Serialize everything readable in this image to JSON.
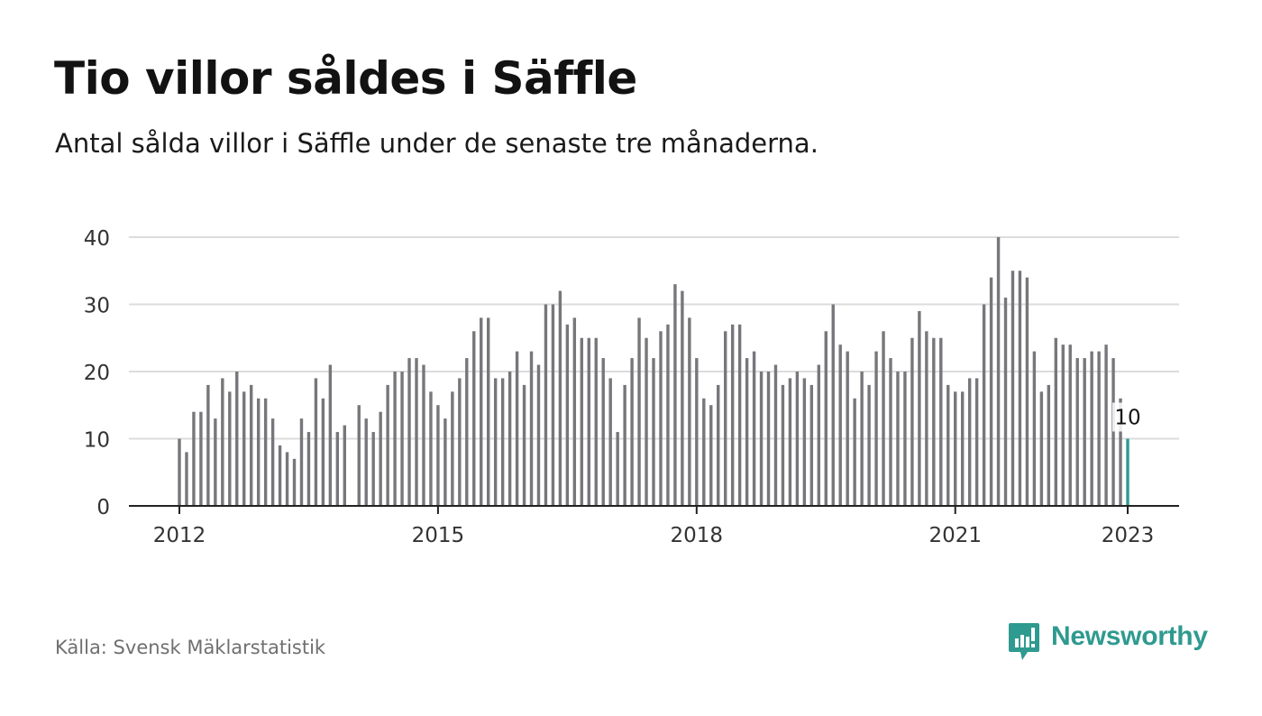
{
  "header": {
    "title": "Tio villor såldes i Säffle",
    "subtitle": "Antal sålda villor i Säffle under de senaste tre månaderna."
  },
  "footer": {
    "source": "Källa: Svensk Mäklarstatistik",
    "brand": "Newsworthy"
  },
  "colors": {
    "bar": "#77777b",
    "highlight": "#2f9a8f",
    "grid": "#dcdcdc",
    "axis": "#222222",
    "brand": "#2f9a8f"
  },
  "chart_data": {
    "type": "bar",
    "x_start": "2012-01",
    "x_end": "2023-01",
    "frequency": "monthly",
    "x_tick_labels": [
      "2012",
      "2015",
      "2018",
      "2021",
      "2023"
    ],
    "y_ticks": [
      0,
      10,
      20,
      30,
      40
    ],
    "ylim": [
      0,
      40
    ],
    "grid": true,
    "values": [
      10,
      8,
      14,
      14,
      18,
      13,
      19,
      17,
      20,
      17,
      18,
      16,
      16,
      13,
      9,
      8,
      7,
      13,
      11,
      19,
      16,
      21,
      11,
      12,
      0,
      15,
      13,
      11,
      14,
      18,
      20,
      20,
      22,
      22,
      21,
      17,
      15,
      13,
      17,
      19,
      22,
      26,
      28,
      28,
      19,
      19,
      20,
      23,
      18,
      23,
      21,
      30,
      30,
      32,
      27,
      28,
      25,
      25,
      25,
      22,
      19,
      11,
      18,
      22,
      28,
      25,
      22,
      26,
      27,
      33,
      32,
      28,
      22,
      16,
      15,
      18,
      26,
      27,
      27,
      22,
      23,
      20,
      20,
      21,
      18,
      19,
      20,
      19,
      18,
      21,
      26,
      30,
      24,
      23,
      16,
      20,
      18,
      23,
      26,
      22,
      20,
      20,
      25,
      29,
      26,
      25,
      25,
      18,
      17,
      17,
      19,
      19,
      30,
      34,
      40,
      31,
      35,
      35,
      34,
      23,
      17,
      18,
      25,
      24,
      24,
      22,
      22,
      23,
      23,
      24,
      22,
      16,
      10
    ],
    "highlight_last": true,
    "data_label": "10"
  }
}
